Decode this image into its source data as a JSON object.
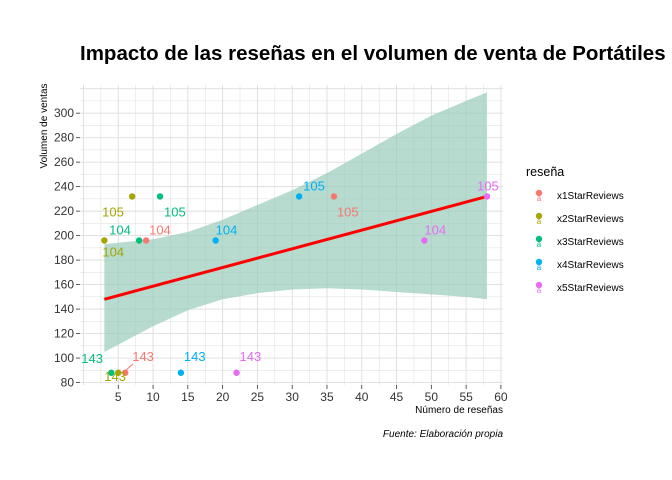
{
  "chart_data": {
    "type": "scatter",
    "title": "Impacto de las reseñas en el volumen de venta de Portátiles",
    "xlabel": "Número de reseñas",
    "ylabel": "Volumen de ventas",
    "caption": "Fuente: Elaboración propia",
    "xlim": [
      -0.5,
      60.3
    ],
    "ylim": [
      78,
      323
    ],
    "x_ticks": [
      5,
      10,
      15,
      20,
      25,
      30,
      35,
      40,
      45,
      50,
      55,
      60
    ],
    "y_ticks": [
      80,
      100,
      120,
      140,
      160,
      180,
      200,
      220,
      240,
      260,
      280,
      300
    ],
    "grid": true,
    "legend": {
      "title": "reseña",
      "position": "right"
    },
    "series": [
      {
        "name": "x1StarReviews",
        "color": "#F8766D",
        "points": [
          {
            "x": 6,
            "y": 88,
            "label": "143"
          },
          {
            "x": 9,
            "y": 196,
            "label": "104"
          },
          {
            "x": 36,
            "y": 232,
            "label": "105"
          }
        ]
      },
      {
        "name": "x2StarReviews",
        "color": "#A3A500",
        "points": [
          {
            "x": 5,
            "y": 88,
            "label": "143"
          },
          {
            "x": 3,
            "y": 196,
            "label": "104"
          },
          {
            "x": 7,
            "y": 232,
            "label": "105"
          }
        ]
      },
      {
        "name": "x3StarReviews",
        "color": "#00BF7D",
        "points": [
          {
            "x": 4,
            "y": 88,
            "label": "143"
          },
          {
            "x": 8,
            "y": 196,
            "label": "104"
          },
          {
            "x": 11,
            "y": 232,
            "label": "105"
          }
        ]
      },
      {
        "name": "x4StarReviews",
        "color": "#00B0F6",
        "points": [
          {
            "x": 14,
            "y": 88,
            "label": "143"
          },
          {
            "x": 19,
            "y": 196,
            "label": "104"
          },
          {
            "x": 31,
            "y": 232,
            "label": "105"
          }
        ]
      },
      {
        "name": "x5StarReviews",
        "color": "#E76BF3",
        "points": [
          {
            "x": 22,
            "y": 88,
            "label": "143"
          },
          {
            "x": 49,
            "y": 196,
            "label": "104"
          },
          {
            "x": 58,
            "y": 232,
            "label": "105"
          }
        ]
      }
    ],
    "regression": {
      "color": "#FF0000",
      "band_color": "#99CCBB",
      "line": [
        {
          "x": 3,
          "y": 148
        },
        {
          "x": 58,
          "y": 232
        }
      ],
      "band_upper": [
        {
          "x": 3,
          "y": 193
        },
        {
          "x": 10,
          "y": 197
        },
        {
          "x": 15,
          "y": 203
        },
        {
          "x": 20,
          "y": 213
        },
        {
          "x": 25,
          "y": 225
        },
        {
          "x": 30,
          "y": 237
        },
        {
          "x": 35,
          "y": 251
        },
        {
          "x": 40,
          "y": 267
        },
        {
          "x": 45,
          "y": 283
        },
        {
          "x": 50,
          "y": 298
        },
        {
          "x": 55,
          "y": 310
        },
        {
          "x": 58,
          "y": 317
        }
      ],
      "band_lower": [
        {
          "x": 3,
          "y": 105
        },
        {
          "x": 10,
          "y": 126
        },
        {
          "x": 15,
          "y": 139
        },
        {
          "x": 20,
          "y": 148
        },
        {
          "x": 25,
          "y": 153
        },
        {
          "x": 30,
          "y": 156
        },
        {
          "x": 35,
          "y": 157
        },
        {
          "x": 40,
          "y": 156
        },
        {
          "x": 45,
          "y": 154
        },
        {
          "x": 50,
          "y": 152
        },
        {
          "x": 55,
          "y": 150
        },
        {
          "x": 58,
          "y": 148
        }
      ]
    }
  }
}
